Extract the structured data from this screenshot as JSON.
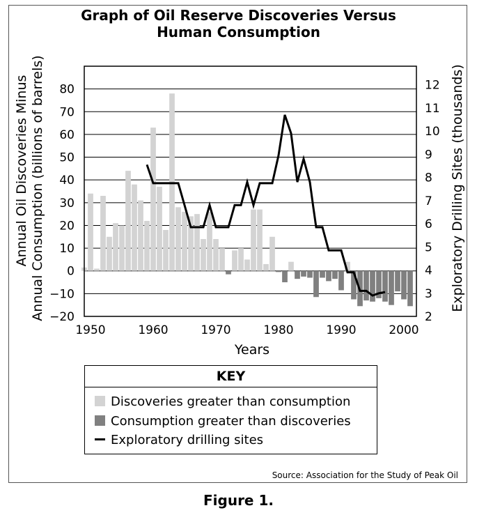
{
  "title_lines": [
    "Graph of Oil Reserve Discoveries Versus",
    "Human Consumption"
  ],
  "figure_caption": "Figure 1.",
  "source": "Source: Association for the Study of Peak Oil",
  "key": {
    "title": "KEY",
    "items": [
      {
        "label": "Discoveries greater than consumption",
        "color": "#d3d3d3",
        "kind": "box"
      },
      {
        "label": "Consumption greater than discoveries",
        "color": "#808080",
        "kind": "box"
      },
      {
        "label": "Exploratory drilling sites",
        "color": "#000000",
        "kind": "line"
      }
    ]
  },
  "chart_data": {
    "type": "bar",
    "xlabel": "Years",
    "ylabel_lines": [
      "Annual Oil Discoveries Minus",
      "Annual Consumption (billions of barrels)"
    ],
    "y2label": "Exploratory Drilling Sites (thousands)",
    "xlim": [
      1949,
      2002
    ],
    "ylim": [
      -20,
      90
    ],
    "y2lim": [
      2,
      12.8
    ],
    "x_ticks": [
      1950,
      1960,
      1970,
      1980,
      1990,
      2000
    ],
    "y_ticks": [
      -20,
      -10,
      0,
      10,
      20,
      30,
      40,
      50,
      60,
      70,
      80
    ],
    "y2_ticks": [
      2,
      3,
      4,
      5,
      6,
      7,
      8,
      9,
      10,
      11,
      12
    ],
    "positive_color": "#d3d3d3",
    "negative_color": "#808080",
    "line_color": "#000000",
    "bars": {
      "x": [
        1949,
        1950,
        1951,
        1952,
        1953,
        1954,
        1955,
        1956,
        1957,
        1958,
        1959,
        1960,
        1961,
        1962,
        1963,
        1964,
        1965,
        1966,
        1967,
        1968,
        1969,
        1970,
        1971,
        1972,
        1973,
        1974,
        1975,
        1976,
        1977,
        1978,
        1979,
        1980,
        1981,
        1982,
        1983,
        1984,
        1985,
        1986,
        1987,
        1988,
        1989,
        1990,
        1991,
        1992,
        1993,
        1994,
        1995,
        1996,
        1997,
        1998,
        1999,
        2000,
        2001
      ],
      "values": [
        1.5,
        34,
        1,
        33,
        15,
        21,
        20,
        44,
        38,
        31,
        22,
        63,
        37,
        18,
        78,
        28,
        26,
        24,
        25,
        14,
        26,
        14,
        10,
        -1.5,
        9,
        10,
        5,
        27,
        27,
        3,
        15,
        -0.5,
        -5,
        4,
        -3.5,
        -2.5,
        -3,
        -11.5,
        -3,
        -4.5,
        -3.5,
        -8.5,
        4,
        -12.5,
        -15.5,
        -13,
        -13.5,
        -12,
        -13.5,
        -15,
        -9,
        -12.5,
        -15.5
      ]
    },
    "series": [
      {
        "name": "Exploratory drilling sites",
        "x": [
          1959,
          1960,
          1961,
          1962,
          1963,
          1964,
          1965,
          1966,
          1967,
          1968,
          1969,
          1970,
          1971,
          1972,
          1973,
          1974,
          1975,
          1976,
          1977,
          1978,
          1979,
          1980,
          1981,
          1982,
          1983,
          1984,
          1985,
          1985.5,
          1986,
          1987,
          1988,
          1989,
          1990,
          1991,
          1992,
          1993,
          1994,
          1995,
          1996,
          1997
        ],
        "values": [
          8.55,
          7.75,
          7.75,
          7.75,
          7.75,
          7.75,
          6.8,
          5.85,
          5.85,
          5.85,
          6.8,
          5.85,
          5.85,
          5.85,
          6.8,
          6.8,
          7.8,
          6.8,
          7.75,
          7.75,
          7.75,
          8.95,
          10.7,
          9.9,
          7.8,
          8.8,
          7.8,
          6.8,
          5.85,
          5.85,
          4.85,
          4.85,
          4.85,
          3.9,
          3.9,
          3.1,
          3.1,
          2.9,
          3.0,
          3.05
        ]
      }
    ]
  }
}
